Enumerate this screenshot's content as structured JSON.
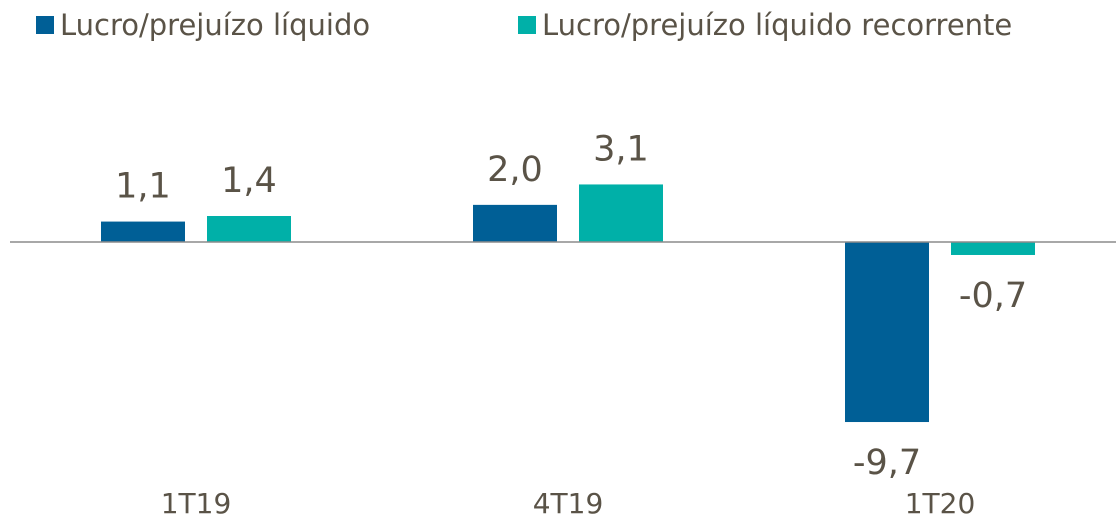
{
  "chart_data": {
    "type": "bar",
    "categories": [
      "1T19",
      "4T19",
      "1T20"
    ],
    "series": [
      {
        "name": "Lucro/prejuízo líquido",
        "color": "#005f96",
        "values": [
          1.1,
          2.0,
          -9.7
        ],
        "value_labels": [
          "1,1",
          "2,0",
          "-9,7"
        ]
      },
      {
        "name": "Lucro/prejuízo líquido recorrente",
        "color": "#00b0a8",
        "values": [
          1.4,
          3.1,
          -0.7
        ],
        "value_labels": [
          "1,4",
          "3,1",
          "-0,7"
        ]
      }
    ],
    "ylim": [
      -10,
      8
    ],
    "legend": "top"
  }
}
